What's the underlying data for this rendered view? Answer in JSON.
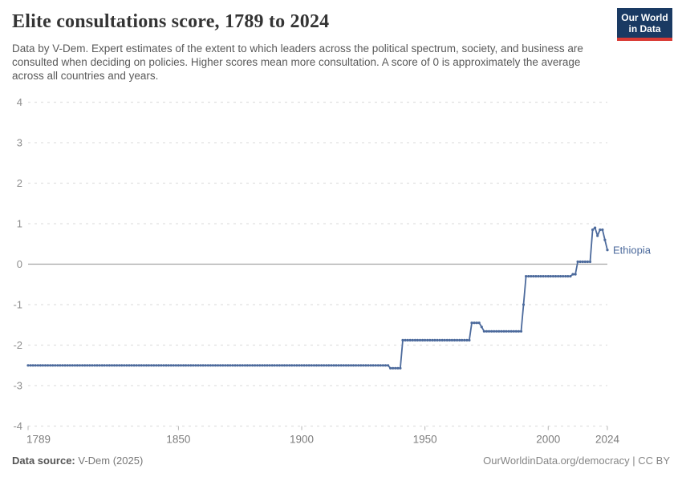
{
  "header": {
    "title": "Elite consultations score, 1789 to 2024",
    "subtitle": "Data by V-Dem. Expert estimates of the extent to which leaders across the political spectrum, society, and business are consulted when deciding on policies. Higher scores mean more consultation. A score of 0 is approximately the average across all countries and years.",
    "logo_line1": "Our World",
    "logo_line2": "in Data"
  },
  "footer": {
    "source_label": "Data source:",
    "source_value": "V-Dem (2025)",
    "right_text": "OurWorldinData.org/democracy | CC BY"
  },
  "chart_data": {
    "type": "line",
    "title": "Elite consultations score, 1789 to 2024",
    "xlabel": "",
    "ylabel": "",
    "xlim": [
      1789,
      2024
    ],
    "ylim": [
      -4,
      4
    ],
    "x_ticks": [
      1789,
      1850,
      1900,
      1950,
      2000,
      2024
    ],
    "y_ticks": [
      -4,
      -3,
      -2,
      -1,
      0,
      1,
      2,
      3,
      4
    ],
    "grid": "dashed horizontal gridlines, solid zero line",
    "legend_position": "end-of-line label",
    "end_label": "Ethiopia",
    "colors": {
      "line": "#4c6a9c",
      "gridline": "#e0e0e0",
      "zero_line": "#a3a3a3",
      "tick_label": "#828282"
    },
    "series": [
      {
        "name": "Ethiopia",
        "note": "yearly data points with markers; anchors are [year, value] breakpoints, linear between",
        "anchors": [
          [
            1789,
            -2.5
          ],
          [
            1935,
            -2.5
          ],
          [
            1936,
            -2.57
          ],
          [
            1940,
            -2.57
          ],
          [
            1941,
            -1.88
          ],
          [
            1968,
            -1.88
          ],
          [
            1969,
            -1.45
          ],
          [
            1972,
            -1.45
          ],
          [
            1973,
            -1.55
          ],
          [
            1974,
            -1.66
          ],
          [
            1989,
            -1.66
          ],
          [
            1990,
            -1.0
          ],
          [
            1991,
            -0.3
          ],
          [
            2009,
            -0.3
          ],
          [
            2010,
            -0.25
          ],
          [
            2011,
            -0.25
          ],
          [
            2012,
            0.06
          ],
          [
            2017,
            0.06
          ],
          [
            2018,
            0.85
          ],
          [
            2019,
            0.9
          ],
          [
            2020,
            0.7
          ],
          [
            2021,
            0.85
          ],
          [
            2022,
            0.85
          ],
          [
            2023,
            0.6
          ],
          [
            2024,
            0.35
          ]
        ]
      }
    ]
  }
}
